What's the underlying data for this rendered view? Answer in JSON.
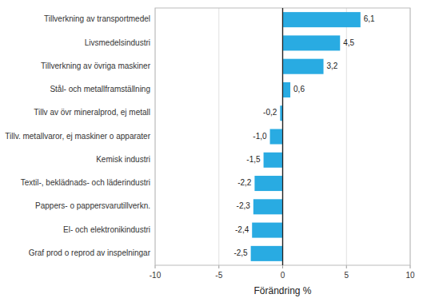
{
  "chart_data": {
    "type": "bar",
    "orientation": "horizontal",
    "categories": [
      "Graf prod o reprod av inspelningar",
      "El- och elektronikindustri",
      "Pappers- o pappersvarutillverkn.",
      "Textil-, beklädnads- och läderindustri",
      "Kemisk industri",
      "Tillv. metallvaror, ej maskiner o apparater",
      "Tillv av övr mineralprod, ej metall",
      "Stål- och metallframställning",
      "Tillverkning av övriga maskiner",
      "Livsmedelsindustri",
      "Tillverkning av transportmedel"
    ],
    "values": [
      -2.5,
      -2.4,
      -2.3,
      -2.2,
      -1.5,
      -1.0,
      -0.2,
      0.6,
      3.2,
      4.5,
      6.1
    ],
    "value_labels": [
      "-2,5",
      "-2,4",
      "-2,3",
      "-2,2",
      "-1,5",
      "-1,0",
      "-0,2",
      "0,6",
      "3,2",
      "4,5",
      "6,1"
    ],
    "data_labels": true,
    "color": "#29abe2",
    "xlabel": "Förändring %",
    "xlim": [
      -10,
      10
    ],
    "xticks": [
      -10,
      -5,
      0,
      5,
      10
    ],
    "grid": true
  }
}
